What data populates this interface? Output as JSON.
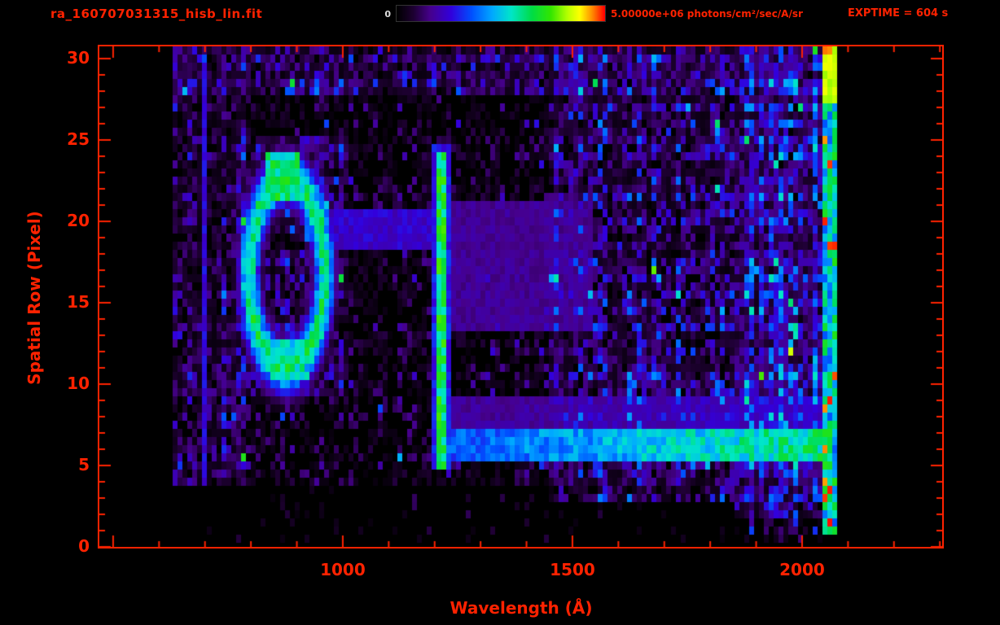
{
  "header": {
    "title": "ra_160707031315_hisb_lin.fit",
    "exptime": "EXPTIME = 604 s",
    "colorbar": {
      "min_label": "0",
      "max_label": "5.00000e+06 photons/cm²/sec/A/sr"
    }
  },
  "colors": {
    "accent": "#ff2200",
    "background": "#000000",
    "colorbar_min_label": "#dddddd"
  },
  "chart_data": {
    "type": "heatmap",
    "title": "ra_160707031315_hisb_lin.fit",
    "xlabel": "Wavelength (Å)",
    "ylabel": "Spatial Row (Pixel)",
    "xlim": [
      470,
      2305
    ],
    "ylim": [
      0,
      30.75
    ],
    "x_ticks": [
      1000,
      1500,
      2000
    ],
    "y_ticks": [
      0,
      5,
      10,
      15,
      20,
      25,
      30
    ],
    "x_minor_step": 100,
    "x_major_step": 500,
    "y_minor_step": 1,
    "y_major_step": 5,
    "grid": false,
    "colorbar": {
      "range": [
        0,
        5000000
      ],
      "units": "photons/cm²/sec/A/sr",
      "position": "top"
    },
    "colormap": [
      {
        "v": 0.0,
        "c": "#000000"
      },
      {
        "v": 0.08,
        "c": "#1e0032"
      },
      {
        "v": 0.16,
        "c": "#46008c"
      },
      {
        "v": 0.26,
        "c": "#3200dc"
      },
      {
        "v": 0.36,
        "c": "#0050ff"
      },
      {
        "v": 0.46,
        "c": "#00aaff"
      },
      {
        "v": 0.55,
        "c": "#00e6c8"
      },
      {
        "v": 0.65,
        "c": "#00dc46"
      },
      {
        "v": 0.74,
        "c": "#32e600"
      },
      {
        "v": 0.82,
        "c": "#b4ff00"
      },
      {
        "v": 0.88,
        "c": "#ffff00"
      },
      {
        "v": 0.94,
        "c": "#ff8c00"
      },
      {
        "v": 1.0,
        "c": "#ff0000"
      }
    ],
    "data_extent": {
      "wavelength": [
        630,
        2076
      ],
      "rows": [
        0.4,
        30.7
      ]
    },
    "features": [
      {
        "kind": "noise",
        "name": "background-noise",
        "wavelength": [
          630,
          2075
        ],
        "rows": [
          4,
          30.7
        ],
        "density": 0.55,
        "level": 0.16
      },
      {
        "kind": "noise",
        "name": "left-region-noise",
        "wavelength": [
          630,
          790
        ],
        "rows": [
          4,
          30.7
        ],
        "density": 0.7,
        "level": 0.22
      },
      {
        "kind": "noise",
        "name": "loop-region-haze",
        "wavelength": [
          770,
          1010
        ],
        "rows": [
          9.5,
          25
        ],
        "density": 0.8,
        "level": 0.26
      },
      {
        "kind": "noise",
        "name": "right-region-noise",
        "wavelength": [
          1450,
          2075
        ],
        "rows": [
          3,
          30.7
        ],
        "density": 0.8,
        "level": 0.34
      },
      {
        "kind": "noise",
        "name": "far-right-noise",
        "wavelength": [
          1850,
          2075
        ],
        "rows": [
          2,
          30.7
        ],
        "density": 0.9,
        "level": 0.38
      },
      {
        "kind": "noise",
        "name": "top-rows-noise",
        "wavelength": [
          630,
          2075
        ],
        "rows": [
          28,
          30.7
        ],
        "density": 0.85,
        "level": 0.3
      },
      {
        "kind": "noise",
        "name": "bottom-corner-noise",
        "wavelength": [
          1850,
          2075
        ],
        "rows": [
          0.4,
          4
        ],
        "density": 0.5,
        "level": 0.24
      },
      {
        "kind": "noise",
        "name": "bottom-sparse-noise",
        "wavelength": [
          700,
          1850
        ],
        "rows": [
          0.5,
          4
        ],
        "density": 0.12,
        "level": 0.1
      },
      {
        "kind": "vline",
        "name": "left-faint-line",
        "wavelength": [
          692,
          706
        ],
        "rows": [
          4,
          30.2
        ],
        "level": 0.3
      },
      {
        "kind": "ring",
        "name": "emission-loop-ring",
        "center_wavelength": 878,
        "center_row": 16.8,
        "radius_wavelength": 82,
        "radius_rows": 5.8,
        "width": 0.2,
        "level": 0.72
      },
      {
        "kind": "blob",
        "name": "loop-top-blob",
        "wavelength": [
          828,
          905
        ],
        "rows": [
          21.2,
          24.2
        ],
        "level": 0.72
      },
      {
        "kind": "blob",
        "name": "loop-bottom-blob",
        "wavelength": [
          840,
          930
        ],
        "rows": [
          10.2,
          12.6
        ],
        "level": 0.6
      },
      {
        "kind": "blob",
        "name": "loop-right-knot",
        "wavelength": [
          915,
          975
        ],
        "rows": [
          18.8,
          21.2
        ],
        "level": 0.5
      },
      {
        "kind": "hband",
        "name": "loop-tail-band",
        "wavelength": [
          930,
          1203
        ],
        "rows": [
          18.4,
          20.6
        ],
        "level": 0.28,
        "ramp": 0
      },
      {
        "kind": "vline",
        "name": "lyman-alpha-halo",
        "wavelength": [
          1196,
          1238
        ],
        "rows": [
          4.6,
          24.8
        ],
        "level": 0.34
      },
      {
        "kind": "vline",
        "name": "lyman-alpha-core",
        "wavelength": [
          1204,
          1228
        ],
        "rows": [
          5,
          24.2
        ],
        "level": 0.76
      },
      {
        "kind": "hband",
        "name": "airglow-row-streak",
        "wavelength": [
          1216,
          2062
        ],
        "rows": [
          5.4,
          7.3
        ],
        "level": 0.42,
        "ramp": 0.3
      },
      {
        "kind": "hband",
        "name": "streak-upper-halo",
        "wavelength": [
          1235,
          2062
        ],
        "rows": [
          7.3,
          9
        ],
        "level": 0.2,
        "ramp": 0.08
      },
      {
        "kind": "hband",
        "name": "lya-right-haze",
        "wavelength": [
          1228,
          1545
        ],
        "rows": [
          13.5,
          21
        ],
        "level": 0.2,
        "ramp": 0
      },
      {
        "kind": "edge",
        "name": "detector-edge",
        "wavelength": [
          2040,
          2076
        ],
        "rows": [
          0.8,
          30.5
        ],
        "level": 0.72,
        "yellow_above_row": 27,
        "red_fraction": 0.08
      }
    ]
  }
}
